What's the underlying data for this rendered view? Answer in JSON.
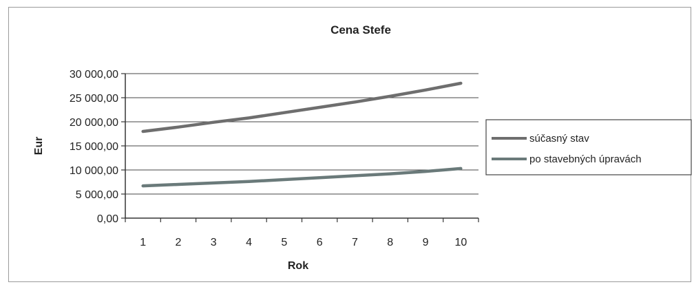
{
  "chart_data": {
    "type": "line",
    "title": "Cena Stefe",
    "xlabel": "Rok",
    "ylabel": "Eur",
    "x": [
      1,
      2,
      3,
      4,
      5,
      6,
      7,
      8,
      9,
      10
    ],
    "x_tick_labels": [
      "1",
      "2",
      "3",
      "4",
      "5",
      "6",
      "7",
      "8",
      "9",
      "10"
    ],
    "ylim": [
      0,
      30000
    ],
    "y_ticks": [
      0,
      5000,
      10000,
      15000,
      20000,
      25000,
      30000
    ],
    "y_tick_labels": [
      "0,00",
      "5 000,00",
      "10 000,00",
      "15 000,00",
      "20 000,00",
      "25 000,00",
      "30 000,00"
    ],
    "grid": true,
    "legend_position": "right",
    "series": [
      {
        "name": "súčasný stav",
        "color": "#6e6e6e",
        "values": [
          18000,
          18900,
          19900,
          20800,
          21900,
          23000,
          24100,
          25300,
          26600,
          28000
        ]
      },
      {
        "name": "po stavebných úpravách",
        "color": "#6a7a7a",
        "values": [
          6700,
          7000,
          7300,
          7600,
          8000,
          8400,
          8800,
          9200,
          9700,
          10300
        ]
      }
    ]
  }
}
